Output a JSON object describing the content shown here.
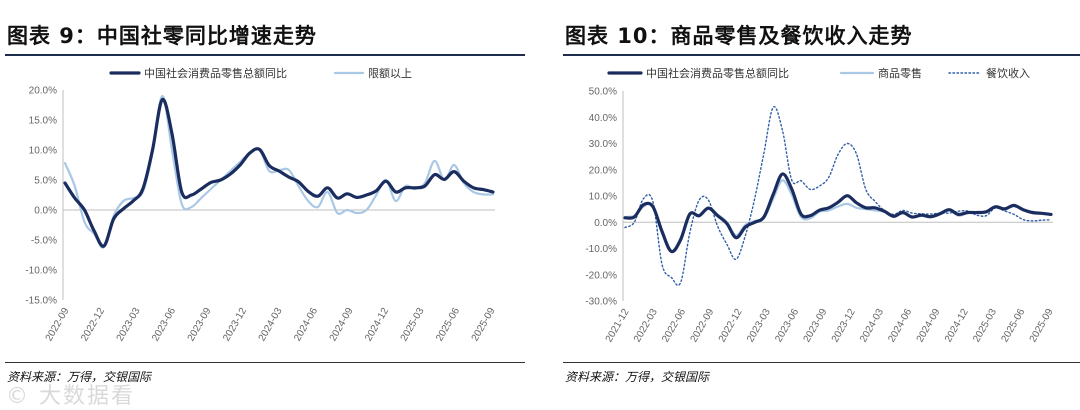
{
  "watermark": "© 大数据看",
  "chart_data": [
    {
      "type": "line",
      "title": "图表 9：中国社零同比增速走势",
      "source": "资料来源：万得，交银国际",
      "yticks": [
        "20.0%",
        "15.0%",
        "10.0%",
        "5.0%",
        "0.0%",
        "-5.0%",
        "-10.0%",
        "-15.0%"
      ],
      "ylim": [
        -15,
        20
      ],
      "xticks": [
        "2022-09",
        "2022-12",
        "2023-03",
        "2023-06",
        "2023-09",
        "2023-12",
        "2024-03",
        "2024-06",
        "2024-09",
        "2024-12",
        "2025-03",
        "2025-06",
        "2025-09"
      ],
      "series": [
        {
          "name": "中国社会消费品零售总额同比",
          "color": "#1a2d5e",
          "style": "thick",
          "values": [
            4.5,
            2.0,
            0.0,
            -3.5,
            -6.0,
            -1.5,
            0.2,
            1.5,
            3.5,
            10.0,
            18.4,
            12.7,
            3.0,
            2.5,
            3.5,
            4.6,
            5.0,
            6.0,
            7.5,
            9.5,
            10.1,
            7.4,
            6.5,
            5.5,
            4.7,
            3.1,
            2.3,
            3.7,
            2.0,
            2.7,
            2.1,
            2.5,
            3.2,
            4.8,
            3.0,
            3.7,
            3.7,
            4.0,
            5.9,
            5.1,
            6.4,
            4.8,
            3.7,
            3.4,
            3.0
          ]
        },
        {
          "name": "限额以上",
          "color": "#a9c8e6",
          "style": "thin",
          "values": [
            7.8,
            4.0,
            -2.0,
            -4.0,
            -6.2,
            -1.0,
            1.5,
            2.0,
            3.0,
            9.5,
            19.0,
            10.0,
            1.0,
            0.5,
            2.0,
            3.5,
            5.0,
            6.5,
            8.0,
            9.5,
            10.0,
            6.5,
            6.6,
            6.7,
            4.0,
            1.5,
            0.5,
            3.0,
            -0.5,
            0.0,
            -0.5,
            0.0,
            2.5,
            5.0,
            1.5,
            4.0,
            3.5,
            4.5,
            8.2,
            5.0,
            7.5,
            4.5,
            3.0,
            2.6,
            2.6
          ]
        }
      ]
    },
    {
      "type": "line",
      "title": "图表 10：商品零售及餐饮收入走势",
      "source": "资料来源：万得，交银国际",
      "yticks": [
        "50.0%",
        "40.0%",
        "30.0%",
        "20.0%",
        "10.0%",
        "0.0%",
        "-10.0%",
        "-20.0%",
        "-30.0%"
      ],
      "ylim": [
        -30,
        50
      ],
      "xticks": [
        "2021-12",
        "2022-03",
        "2022-06",
        "2022-09",
        "2022-12",
        "2023-03",
        "2023-06",
        "2023-09",
        "2023-12",
        "2024-03",
        "2024-06",
        "2024-09",
        "2024-12",
        "2025-03",
        "2025-06",
        "2025-09"
      ],
      "series": [
        {
          "name": "中国社会消费品零售总额同比",
          "color": "#1a2d5e",
          "style": "thick",
          "values": [
            1.7,
            2.0,
            6.7,
            6.0,
            -3.5,
            -11.1,
            -6.7,
            3.1,
            2.5,
            5.4,
            2.5,
            -0.5,
            -5.9,
            -1.8,
            0.0,
            2.0,
            10.6,
            18.4,
            12.7,
            3.1,
            2.5,
            4.6,
            5.5,
            7.6,
            10.1,
            7.4,
            5.5,
            5.5,
            4.2,
            2.3,
            3.7,
            2.0,
            2.7,
            2.1,
            3.2,
            4.8,
            3.0,
            3.7,
            3.7,
            4.0,
            5.9,
            5.1,
            6.4,
            4.8,
            3.7,
            3.4,
            3.0
          ]
        },
        {
          "name": "商品零售",
          "color": "#a9c8e6",
          "style": "thin",
          "values": [
            2.0,
            2.5,
            6.0,
            6.5,
            -4.0,
            -11.0,
            -6.0,
            3.5,
            2.3,
            5.5,
            3.0,
            0.0,
            -5.0,
            -1.0,
            0.5,
            1.5,
            9.0,
            16.0,
            10.5,
            2.0,
            1.5,
            4.0,
            4.5,
            6.0,
            7.0,
            5.5,
            5.0,
            4.5,
            4.0,
            2.0,
            3.5,
            2.0,
            2.5,
            2.0,
            3.0,
            4.5,
            2.5,
            3.5,
            3.8,
            4.0,
            5.6,
            4.8,
            6.1,
            4.5,
            3.5,
            3.2,
            3.0
          ]
        },
        {
          "name": "餐饮收入",
          "color": "#2f5fa8",
          "style": "dotted",
          "values": [
            -2.0,
            0.0,
            9.0,
            8.0,
            -16.0,
            -21.0,
            -23.0,
            -4.0,
            8.4,
            8.5,
            -1.5,
            -8.4,
            -14.1,
            -5.0,
            9.0,
            26.3,
            43.8,
            35.1,
            16.1,
            15.8,
            12.5,
            13.8,
            17.1,
            25.8,
            30.0,
            26.0,
            12.5,
            8.0,
            4.5,
            3.0,
            4.5,
            3.5,
            3.2,
            3.1,
            3.5,
            3.5,
            4.2,
            4.3,
            2.7,
            2.5,
            5.5,
            4.3,
            3.0,
            1.0,
            0.5,
            0.8,
            0.9
          ]
        }
      ]
    }
  ]
}
